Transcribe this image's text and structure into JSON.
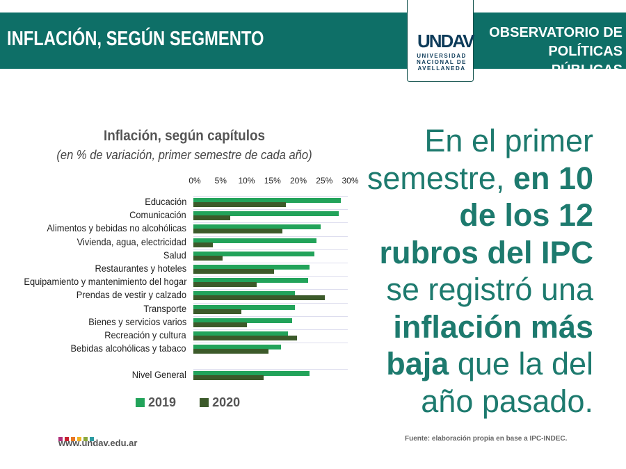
{
  "header": {
    "title": "INFLACIÓN, SEGÚN SEGMENTO",
    "observatorio_line1": "OBSERVATORIO DE",
    "observatorio_line2": "POLÍTICAS PÚBLICAS",
    "logo_mark": "UNDAV",
    "logo_sub": "UNIVERSIDAD NACIONAL DE AVELLANEDA"
  },
  "chart_data": {
    "type": "bar",
    "orientation": "horizontal",
    "title": "Inflación, según capítulos",
    "subtitle": "(en % de variación, primer semestre de cada año)",
    "xlim": [
      0,
      30
    ],
    "ticks": [
      "0%",
      "5%",
      "10%",
      "15%",
      "20%",
      "25%",
      "30%"
    ],
    "categories": [
      "Educación",
      "Comunicación",
      "Alimentos y bebidas no alcohólicas",
      "Vivienda, agua, electricidad",
      "Salud",
      "Restaurantes y hoteles",
      "Equipamiento y mantenimiento del hogar",
      "Prendas de vestir y calzado",
      "Transporte",
      "Bienes y servicios varios",
      "Recreación y cultura",
      "Bebidas alcohólicas y tabaco",
      "Nivel General"
    ],
    "series": [
      {
        "name": "2019",
        "color": "#22a35a",
        "values": [
          28.5,
          28.1,
          24.6,
          23.8,
          23.4,
          22.4,
          22.2,
          19.6,
          19.6,
          19.1,
          18.2,
          16.9,
          22.4
        ]
      },
      {
        "name": "2020",
        "color": "#3c5a2a",
        "values": [
          17.9,
          7.1,
          17.2,
          3.7,
          5.7,
          15.6,
          12.2,
          25.4,
          9.3,
          10.3,
          20.0,
          14.5,
          13.6
        ]
      }
    ],
    "legend": "bottom",
    "grid": true
  },
  "message": {
    "p1": "En el primer semestre, ",
    "b1": "en 10 de los 12 rubros del IPC",
    "p2": " se registró una ",
    "b2": "inflación más baja",
    "p3": " que la del año pasado."
  },
  "footer": {
    "source": "Fuente: elaboración propia en base a IPC-INDEC.",
    "url": "www.undav.edu.ar",
    "squares": [
      "#b0307a",
      "#c8202f",
      "#e87722",
      "#f0b323",
      "#8aa83a",
      "#2a9aa0"
    ]
  }
}
